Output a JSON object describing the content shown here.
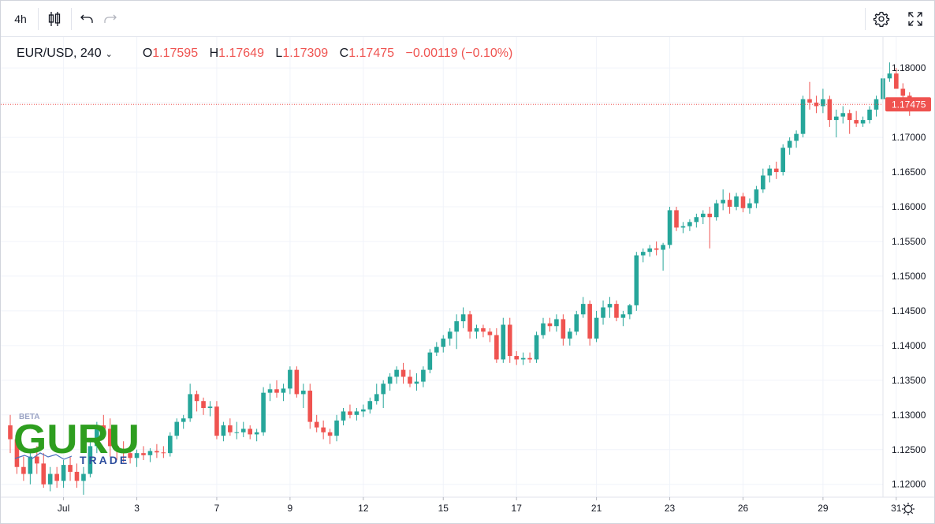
{
  "toolbar": {
    "interval": "4h",
    "icons": [
      "candles-icon",
      "undo-icon",
      "redo-icon",
      "settings-icon",
      "fullscreen-icon"
    ]
  },
  "legend": {
    "symbol": "EUR/USD, 240",
    "open_label": "O",
    "open": "1.17595",
    "high_label": "H",
    "high": "1.17649",
    "low_label": "L",
    "low": "1.17309",
    "close_label": "C",
    "close": "1.17475",
    "change": "−0.00119 (−0.10%)"
  },
  "logo": {
    "beta": "BETA",
    "word": "GURU",
    "sub": "TRADE"
  },
  "colors": {
    "up": "#26a69a",
    "down": "#ef5350",
    "grid": "#f0f3fa"
  },
  "chart_data": {
    "type": "candlestick",
    "price_axis": {
      "range": [
        1.1185,
        1.182
      ],
      "ticks": [
        "1.18000",
        "1.17500",
        "1.17000",
        "1.16500",
        "1.16000",
        "1.15500",
        "1.15000",
        "1.14500",
        "1.14000",
        "1.13500",
        "1.13000",
        "1.12500",
        "1.12000"
      ]
    },
    "current_price": "1.17475",
    "time_axis": {
      "ticks": [
        {
          "label": "Jul",
          "bar": 8
        },
        {
          "label": "3",
          "bar": 19
        },
        {
          "label": "7",
          "bar": 31
        },
        {
          "label": "9",
          "bar": 42
        },
        {
          "label": "12",
          "bar": 53
        },
        {
          "label": "15",
          "bar": 65
        },
        {
          "label": "17",
          "bar": 76
        },
        {
          "label": "21",
          "bar": 88
        },
        {
          "label": "23",
          "bar": 99
        },
        {
          "label": "26",
          "bar": 110
        },
        {
          "label": "29",
          "bar": 122
        },
        {
          "label": "31",
          "bar": 133
        }
      ]
    },
    "bars_ohlc": [
      [
        1.1285,
        1.13,
        1.1245,
        1.1265
      ],
      [
        1.1265,
        1.1275,
        1.1215,
        1.1225
      ],
      [
        1.1225,
        1.124,
        1.1205,
        1.1215
      ],
      [
        1.1215,
        1.125,
        1.12,
        1.124
      ],
      [
        1.124,
        1.1255,
        1.1215,
        1.123
      ],
      [
        1.123,
        1.1245,
        1.1195,
        1.12
      ],
      [
        1.12,
        1.1225,
        1.119,
        1.1215
      ],
      [
        1.1215,
        1.1225,
        1.1195,
        1.1205
      ],
      [
        1.1205,
        1.1235,
        1.1195,
        1.1228
      ],
      [
        1.1228,
        1.124,
        1.1205,
        1.1218
      ],
      [
        1.1218,
        1.123,
        1.1195,
        1.1205
      ],
      [
        1.1205,
        1.1225,
        1.1185,
        1.1215
      ],
      [
        1.1215,
        1.1265,
        1.121,
        1.1255
      ],
      [
        1.1255,
        1.129,
        1.1245,
        1.1285
      ],
      [
        1.1285,
        1.13,
        1.1265,
        1.128
      ],
      [
        1.128,
        1.1295,
        1.124,
        1.1255
      ],
      [
        1.1255,
        1.127,
        1.1235,
        1.125
      ],
      [
        1.125,
        1.1262,
        1.1232,
        1.1245
      ],
      [
        1.1245,
        1.1255,
        1.123,
        1.1238
      ],
      [
        1.1238,
        1.125,
        1.1225,
        1.1245
      ],
      [
        1.1245,
        1.1255,
        1.1235,
        1.1242
      ],
      [
        1.1242,
        1.1252,
        1.1232,
        1.1248
      ],
      [
        1.1248,
        1.1258,
        1.1238,
        1.1246
      ],
      [
        1.1246,
        1.1255,
        1.1238,
        1.1245
      ],
      [
        1.1245,
        1.1275,
        1.124,
        1.127
      ],
      [
        1.127,
        1.1295,
        1.1265,
        1.129
      ],
      [
        1.129,
        1.13,
        1.128,
        1.1295
      ],
      [
        1.1295,
        1.1345,
        1.129,
        1.133
      ],
      [
        1.133,
        1.1335,
        1.1305,
        1.132
      ],
      [
        1.132,
        1.1325,
        1.13,
        1.131
      ],
      [
        1.131,
        1.132,
        1.1298,
        1.1312
      ],
      [
        1.1312,
        1.132,
        1.1265,
        1.127
      ],
      [
        1.127,
        1.129,
        1.1262,
        1.1285
      ],
      [
        1.1285,
        1.1295,
        1.127,
        1.1275
      ],
      [
        1.1275,
        1.129,
        1.1265,
        1.1275
      ],
      [
        1.1275,
        1.129,
        1.1268,
        1.128
      ],
      [
        1.128,
        1.1285,
        1.1265,
        1.1272
      ],
      [
        1.1272,
        1.128,
        1.1262,
        1.1275
      ],
      [
        1.1275,
        1.134,
        1.127,
        1.1332
      ],
      [
        1.1332,
        1.1345,
        1.132,
        1.1337
      ],
      [
        1.1337,
        1.135,
        1.1325,
        1.1332
      ],
      [
        1.1332,
        1.1345,
        1.132,
        1.1338
      ],
      [
        1.1338,
        1.137,
        1.133,
        1.1365
      ],
      [
        1.1365,
        1.137,
        1.1325,
        1.133
      ],
      [
        1.133,
        1.1345,
        1.131,
        1.1335
      ],
      [
        1.1335,
        1.1345,
        1.128,
        1.129
      ],
      [
        1.129,
        1.13,
        1.1275,
        1.1282
      ],
      [
        1.1282,
        1.1292,
        1.1265,
        1.1275
      ],
      [
        1.1275,
        1.128,
        1.1258,
        1.127
      ],
      [
        1.127,
        1.13,
        1.1262,
        1.1292
      ],
      [
        1.1292,
        1.131,
        1.1285,
        1.1305
      ],
      [
        1.1305,
        1.1315,
        1.1295,
        1.13
      ],
      [
        1.13,
        1.131,
        1.1292,
        1.1305
      ],
      [
        1.1305,
        1.1315,
        1.1297,
        1.1308
      ],
      [
        1.1308,
        1.1325,
        1.1302,
        1.132
      ],
      [
        1.132,
        1.1345,
        1.1315,
        1.133
      ],
      [
        1.133,
        1.135,
        1.131,
        1.1345
      ],
      [
        1.1345,
        1.136,
        1.1335,
        1.1355
      ],
      [
        1.1355,
        1.137,
        1.1345,
        1.1365
      ],
      [
        1.1365,
        1.1375,
        1.1345,
        1.1355
      ],
      [
        1.1355,
        1.1365,
        1.134,
        1.1345
      ],
      [
        1.1345,
        1.136,
        1.1335,
        1.1348
      ],
      [
        1.1348,
        1.137,
        1.134,
        1.1365
      ],
      [
        1.1365,
        1.1395,
        1.136,
        1.139
      ],
      [
        1.139,
        1.1405,
        1.1385,
        1.1398
      ],
      [
        1.1398,
        1.1415,
        1.139,
        1.141
      ],
      [
        1.141,
        1.1425,
        1.14,
        1.142
      ],
      [
        1.142,
        1.1445,
        1.1395,
        1.1435
      ],
      [
        1.1435,
        1.1455,
        1.1425,
        1.1445
      ],
      [
        1.1445,
        1.145,
        1.141,
        1.142
      ],
      [
        1.142,
        1.143,
        1.141,
        1.1425
      ],
      [
        1.1425,
        1.143,
        1.1412,
        1.142
      ],
      [
        1.142,
        1.1425,
        1.1405,
        1.1415
      ],
      [
        1.1415,
        1.1425,
        1.1375,
        1.138
      ],
      [
        1.138,
        1.144,
        1.1375,
        1.143
      ],
      [
        1.143,
        1.144,
        1.1375,
        1.1385
      ],
      [
        1.1385,
        1.1392,
        1.1372,
        1.138
      ],
      [
        1.138,
        1.139,
        1.1372,
        1.1382
      ],
      [
        1.1382,
        1.139,
        1.1375,
        1.138
      ],
      [
        1.138,
        1.142,
        1.1375,
        1.1415
      ],
      [
        1.1415,
        1.144,
        1.141,
        1.1432
      ],
      [
        1.1432,
        1.144,
        1.142,
        1.1428
      ],
      [
        1.1428,
        1.1445,
        1.142,
        1.1438
      ],
      [
        1.1438,
        1.1445,
        1.14,
        1.141
      ],
      [
        1.141,
        1.1425,
        1.14,
        1.142
      ],
      [
        1.142,
        1.145,
        1.1415,
        1.1445
      ],
      [
        1.1445,
        1.147,
        1.144,
        1.146
      ],
      [
        1.146,
        1.1465,
        1.14,
        1.141
      ],
      [
        1.141,
        1.145,
        1.1405,
        1.144
      ],
      [
        1.144,
        1.1465,
        1.143,
        1.1455
      ],
      [
        1.1455,
        1.147,
        1.144,
        1.146
      ],
      [
        1.146,
        1.1465,
        1.1435,
        1.144
      ],
      [
        1.144,
        1.145,
        1.1428,
        1.1445
      ],
      [
        1.1445,
        1.146,
        1.1438,
        1.1458
      ],
      [
        1.1458,
        1.1535,
        1.145,
        1.153
      ],
      [
        1.153,
        1.154,
        1.152,
        1.1535
      ],
      [
        1.1535,
        1.1545,
        1.1528,
        1.154
      ],
      [
        1.154,
        1.155,
        1.153,
        1.1538
      ],
      [
        1.1538,
        1.1548,
        1.1508,
        1.1545
      ],
      [
        1.1545,
        1.16,
        1.154,
        1.1595
      ],
      [
        1.1595,
        1.16,
        1.1565,
        1.157
      ],
      [
        1.157,
        1.1578,
        1.1562,
        1.1572
      ],
      [
        1.1572,
        1.1582,
        1.1565,
        1.1578
      ],
      [
        1.1578,
        1.159,
        1.157,
        1.1585
      ],
      [
        1.1585,
        1.1595,
        1.1575,
        1.159
      ],
      [
        1.159,
        1.16,
        1.154,
        1.1585
      ],
      [
        1.1585,
        1.161,
        1.158,
        1.1605
      ],
      [
        1.1605,
        1.1625,
        1.1595,
        1.161
      ],
      [
        1.161,
        1.162,
        1.159,
        1.16
      ],
      [
        1.16,
        1.162,
        1.1595,
        1.1615
      ],
      [
        1.1615,
        1.162,
        1.1592,
        1.1598
      ],
      [
        1.1598,
        1.1612,
        1.159,
        1.1605
      ],
      [
        1.1605,
        1.163,
        1.1598,
        1.1625
      ],
      [
        1.1625,
        1.1655,
        1.162,
        1.1645
      ],
      [
        1.1645,
        1.166,
        1.1635,
        1.1655
      ],
      [
        1.1655,
        1.1665,
        1.164,
        1.165
      ],
      [
        1.165,
        1.169,
        1.1645,
        1.1685
      ],
      [
        1.1685,
        1.17,
        1.1675,
        1.1695
      ],
      [
        1.1695,
        1.171,
        1.1685,
        1.1705
      ],
      [
        1.1705,
        1.176,
        1.17,
        1.1755
      ],
      [
        1.1755,
        1.178,
        1.174,
        1.175
      ],
      [
        1.175,
        1.176,
        1.1735,
        1.1745
      ],
      [
        1.1745,
        1.177,
        1.1735,
        1.1755
      ],
      [
        1.1755,
        1.176,
        1.1715,
        1.1725
      ],
      [
        1.1725,
        1.174,
        1.17,
        1.173
      ],
      [
        1.173,
        1.1745,
        1.172,
        1.1735
      ],
      [
        1.1735,
        1.174,
        1.1705,
        1.1725
      ],
      [
        1.1725,
        1.1738,
        1.1715,
        1.172
      ],
      [
        1.172,
        1.173,
        1.1715,
        1.1725
      ],
      [
        1.1725,
        1.1745,
        1.172,
        1.174
      ],
      [
        1.174,
        1.176,
        1.173,
        1.1755
      ],
      [
        1.1755,
        1.179,
        1.175,
        1.1785
      ],
      [
        1.1785,
        1.1808,
        1.178,
        1.1792
      ],
      [
        1.1792,
        1.18,
        1.177,
        1.177
      ],
      [
        1.177,
        1.1778,
        1.175,
        1.176
      ],
      [
        1.176,
        1.1765,
        1.1731,
        1.1748
      ]
    ]
  }
}
